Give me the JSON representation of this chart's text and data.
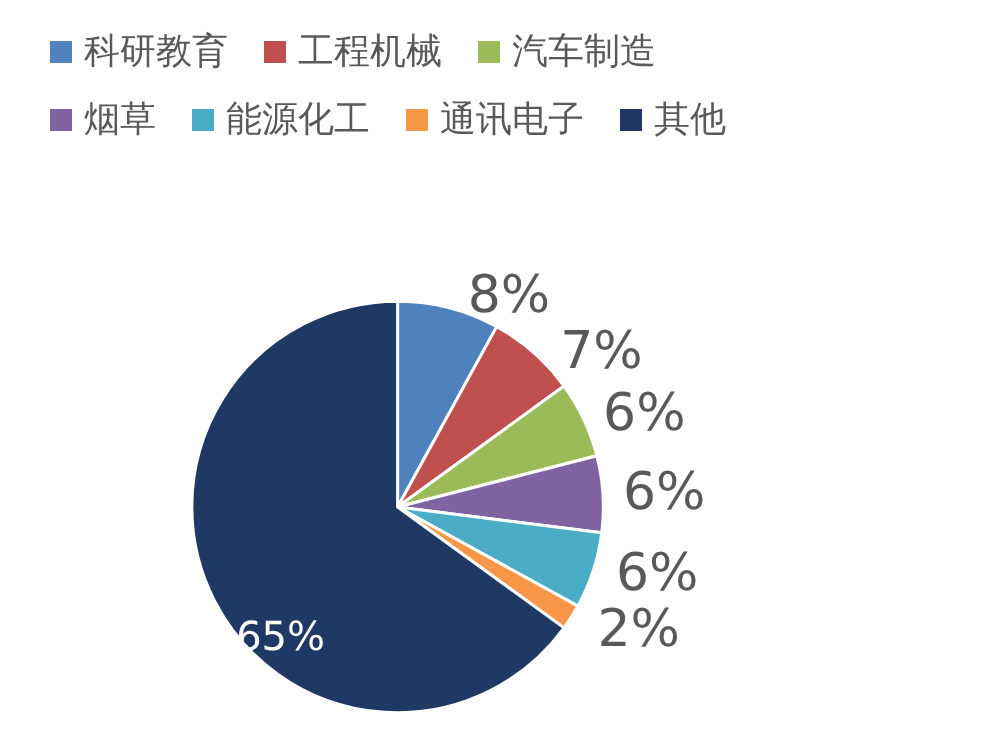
{
  "chart_data": {
    "type": "pie",
    "categories": [
      "科研教育",
      "工程机械",
      "汽车制造",
      "烟草",
      "能源化工",
      "通讯电子",
      "其他"
    ],
    "values": [
      8,
      7,
      6,
      6,
      6,
      2,
      65
    ],
    "colors": [
      "#4f81bd",
      "#c0504d",
      "#9bbb59",
      "#8064a2",
      "#4bacc6",
      "#f79646",
      "#1f3864"
    ],
    "value_labels": [
      "8%",
      "7%",
      "6%",
      "6%",
      "6%",
      "2%",
      "65%"
    ],
    "legend": "top"
  }
}
